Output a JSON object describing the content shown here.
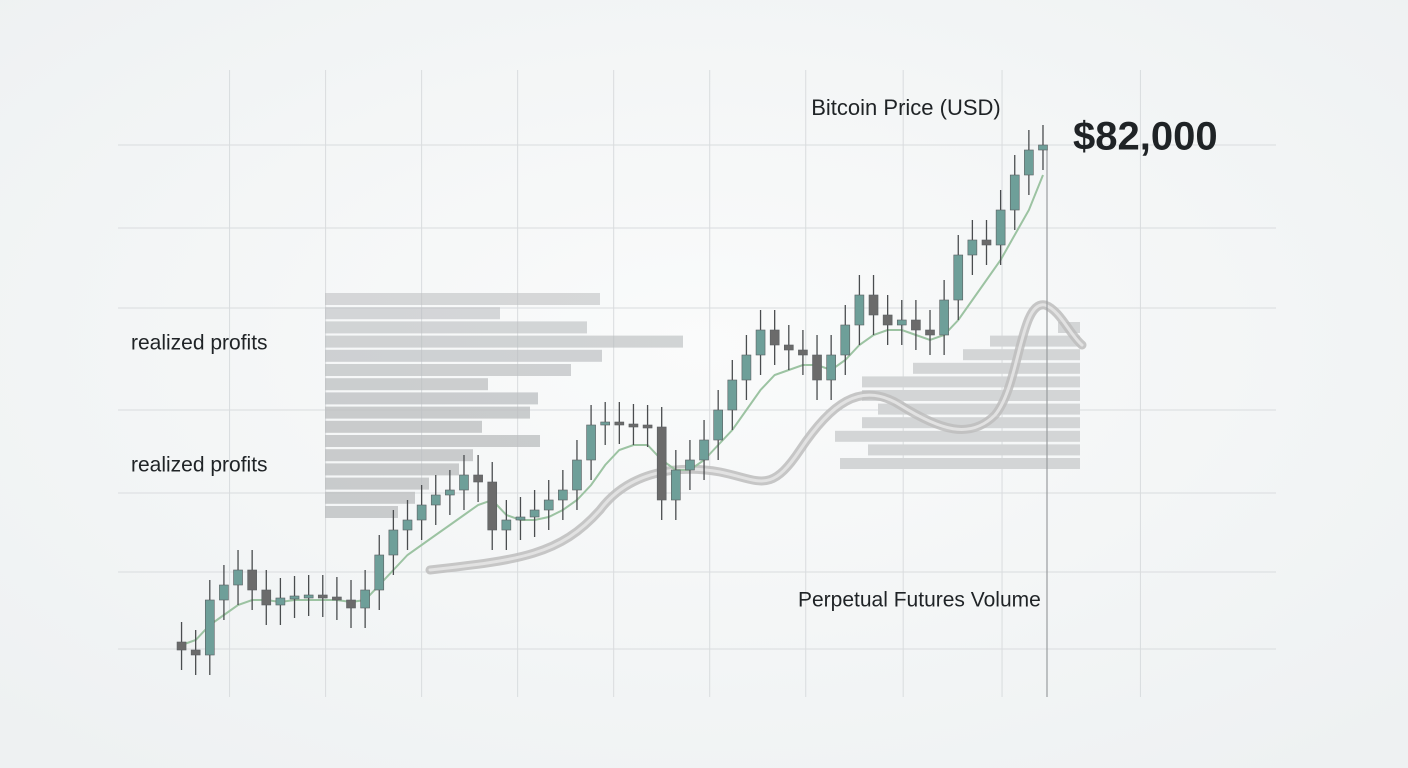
{
  "chart_data": {
    "type": "candlestick",
    "title": "Bitcoin Price (USD)",
    "price_label": "$82,000",
    "annotations": [
      "realized profits",
      "realized profits",
      "Perpetual Futures Volume"
    ],
    "up_color": "#6e9f99",
    "down_color": "#6b6b6b",
    "x": [
      0,
      1,
      2,
      3,
      4,
      5,
      6,
      7,
      8,
      9,
      10,
      11,
      12,
      13,
      14,
      15,
      16,
      17,
      18,
      19,
      20,
      21,
      22,
      23,
      24,
      25,
      26,
      27,
      28,
      29,
      30,
      31,
      32,
      33,
      34,
      35,
      36,
      37,
      38,
      39,
      40,
      41,
      42,
      43,
      44,
      45,
      46,
      47,
      48,
      49,
      50,
      51,
      52,
      53,
      54,
      55,
      56,
      57,
      58,
      59,
      60,
      61
    ],
    "open": [
      58,
      50,
      45,
      100,
      115,
      130,
      110,
      95,
      102,
      104,
      105,
      103,
      100,
      92,
      110,
      145,
      170,
      180,
      195,
      205,
      210,
      225,
      218,
      170,
      180,
      183,
      190,
      200,
      210,
      240,
      275,
      278,
      276,
      275,
      273,
      200,
      230,
      240,
      260,
      290,
      320,
      345,
      370,
      355,
      350,
      345,
      320,
      345,
      375,
      405,
      385,
      375,
      380,
      370,
      365,
      400,
      445,
      460,
      455,
      490,
      525,
      550
    ],
    "high": [
      78,
      70,
      120,
      135,
      150,
      150,
      130,
      122,
      124,
      125,
      125,
      123,
      120,
      130,
      165,
      190,
      200,
      215,
      225,
      230,
      245,
      245,
      238,
      200,
      203,
      210,
      220,
      230,
      260,
      295,
      298,
      298,
      296,
      295,
      293,
      250,
      260,
      280,
      310,
      340,
      365,
      390,
      390,
      375,
      370,
      365,
      365,
      395,
      425,
      425,
      405,
      400,
      400,
      390,
      420,
      465,
      480,
      480,
      510,
      545,
      570,
      575
    ],
    "low": [
      30,
      25,
      25,
      80,
      95,
      90,
      75,
      75,
      82,
      84,
      83,
      80,
      72,
      72,
      90,
      125,
      150,
      160,
      175,
      185,
      190,
      198,
      150,
      150,
      160,
      163,
      170,
      180,
      190,
      220,
      255,
      256,
      255,
      253,
      180,
      180,
      210,
      220,
      240,
      270,
      300,
      325,
      335,
      330,
      325,
      300,
      300,
      325,
      355,
      365,
      355,
      355,
      350,
      345,
      345,
      380,
      425,
      435,
      435,
      470,
      505,
      530
    ],
    "close": [
      50,
      45,
      100,
      115,
      130,
      110,
      95,
      102,
      104,
      105,
      103,
      100,
      92,
      110,
      145,
      170,
      180,
      195,
      205,
      210,
      225,
      218,
      170,
      180,
      183,
      190,
      200,
      210,
      240,
      275,
      278,
      276,
      275,
      273,
      200,
      230,
      240,
      260,
      290,
      320,
      345,
      370,
      355,
      350,
      345,
      320,
      345,
      375,
      405,
      385,
      375,
      380,
      370,
      365,
      400,
      445,
      460,
      455,
      490,
      525,
      550,
      555
    ],
    "moving_average": {
      "color": "#9cc3a2",
      "values": [
        55,
        60,
        75,
        85,
        95,
        100,
        100,
        98,
        100,
        100,
        100,
        100,
        98,
        100,
        115,
        130,
        145,
        155,
        165,
        175,
        185,
        195,
        200,
        185,
        180,
        180,
        183,
        190,
        200,
        215,
        235,
        250,
        255,
        255,
        240,
        230,
        230,
        240,
        255,
        270,
        290,
        310,
        325,
        330,
        335,
        335,
        330,
        340,
        355,
        365,
        370,
        370,
        365,
        360,
        365,
        380,
        400,
        420,
        440,
        465,
        490,
        525
      ]
    },
    "volume_profile_left": {
      "color": "#b9bcbe",
      "values": [
        275,
        175,
        262,
        358,
        277,
        246,
        163,
        213,
        205,
        157,
        215,
        148,
        134,
        104,
        90,
        73
      ]
    },
    "volume_profile_right": {
      "color": "#d3d5d6",
      "values": [
        22,
        90,
        117,
        167,
        218,
        218,
        202,
        218,
        245,
        212,
        240
      ]
    },
    "xlim": [
      -4.5,
      77.5
    ],
    "xticks": [
      3.4,
      10.2,
      17,
      23.8,
      30.6,
      37.4,
      44.2,
      51.1,
      58.1,
      67.9
    ],
    "ylim": [
      3,
      630
    ],
    "yticks": [
      51,
      128,
      207,
      290,
      392,
      472,
      555
    ],
    "grid": true
  }
}
